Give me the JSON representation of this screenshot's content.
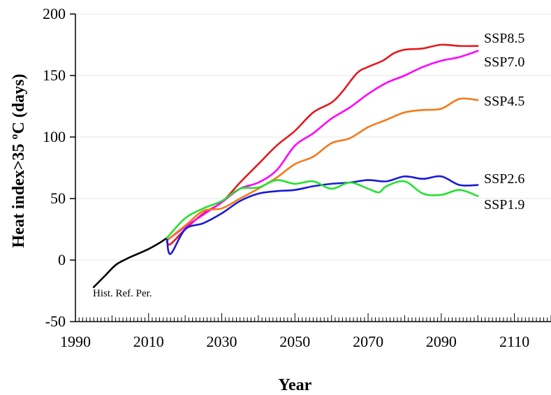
{
  "chart_data": {
    "type": "line",
    "xlabel": "Year",
    "ylabel": "Heat index>35 ºC (days)",
    "xlim": [
      1990,
      2120
    ],
    "ylim": [
      -50,
      200
    ],
    "x_ticks": [
      "1990",
      "2010",
      "2030",
      "2050",
      "2070",
      "2090",
      "2110"
    ],
    "y_ticks": [
      "-50",
      "0",
      "50",
      "100",
      "150",
      "200"
    ],
    "grid": "horizontal",
    "annotation": "Hist. Ref. Per.",
    "series": [
      {
        "name": "Hist. Ref. Per.",
        "color": "#000000",
        "label": "",
        "x": [
          1995,
          1998,
          2001,
          2004,
          2007,
          2010,
          2013,
          2015
        ],
        "y": [
          -22,
          -13,
          -4,
          1,
          5,
          9,
          14,
          18
        ]
      },
      {
        "name": "SSP8.5",
        "color": "#e31a1c",
        "label": "SSP8.5",
        "x": [
          2015,
          2016,
          2020,
          2025,
          2030,
          2035,
          2040,
          2045,
          2050,
          2055,
          2060,
          2063,
          2067,
          2070,
          2074,
          2077,
          2080,
          2085,
          2090,
          2095,
          2100
        ],
        "y": [
          15,
          13,
          25,
          38,
          47,
          63,
          78,
          93,
          105,
          120,
          128,
          137,
          152,
          157,
          162,
          168,
          171,
          172,
          175,
          174,
          174
        ]
      },
      {
        "name": "SSP7.0",
        "color": "#ff00ff",
        "label": "SSP7.0",
        "x": [
          2015,
          2020,
          2025,
          2030,
          2035,
          2040,
          2045,
          2050,
          2055,
          2060,
          2065,
          2070,
          2075,
          2080,
          2085,
          2090,
          2095,
          2100
        ],
        "y": [
          16,
          27,
          37,
          47,
          58,
          63,
          73,
          93,
          103,
          115,
          124,
          135,
          144,
          150,
          157,
          162,
          165,
          170
        ]
      },
      {
        "name": "SSP4.5",
        "color": "#f5791a",
        "label": "SSP4.5",
        "x": [
          2015,
          2020,
          2025,
          2030,
          2035,
          2040,
          2045,
          2050,
          2055,
          2060,
          2065,
          2070,
          2075,
          2080,
          2085,
          2090,
          2095,
          2100
        ],
        "y": [
          16,
          28,
          40,
          42,
          50,
          58,
          67,
          78,
          84,
          95,
          99,
          108,
          114,
          120,
          122,
          123,
          131,
          130
        ]
      },
      {
        "name": "SSP2.6",
        "color": "#1a1ad6",
        "label": "SSP2.6",
        "x": [
          2015,
          2016,
          2020,
          2025,
          2030,
          2035,
          2040,
          2045,
          2050,
          2055,
          2060,
          2065,
          2070,
          2075,
          2080,
          2085,
          2090,
          2095,
          2100
        ],
        "y": [
          18,
          5,
          25,
          30,
          38,
          48,
          54,
          56,
          57,
          60,
          62,
          63,
          65,
          64,
          68,
          66,
          68,
          61,
          61
        ]
      },
      {
        "name": "SSP1.9",
        "color": "#22e22e",
        "label": "SSP1.9",
        "x": [
          2015,
          2020,
          2025,
          2030,
          2035,
          2040,
          2045,
          2050,
          2055,
          2060,
          2065,
          2070,
          2073,
          2075,
          2080,
          2085,
          2090,
          2095,
          2100
        ],
        "y": [
          18,
          34,
          42,
          48,
          58,
          59,
          65,
          62,
          64,
          58,
          63,
          58,
          55,
          60,
          64,
          54,
          53,
          57,
          52
        ]
      }
    ]
  }
}
